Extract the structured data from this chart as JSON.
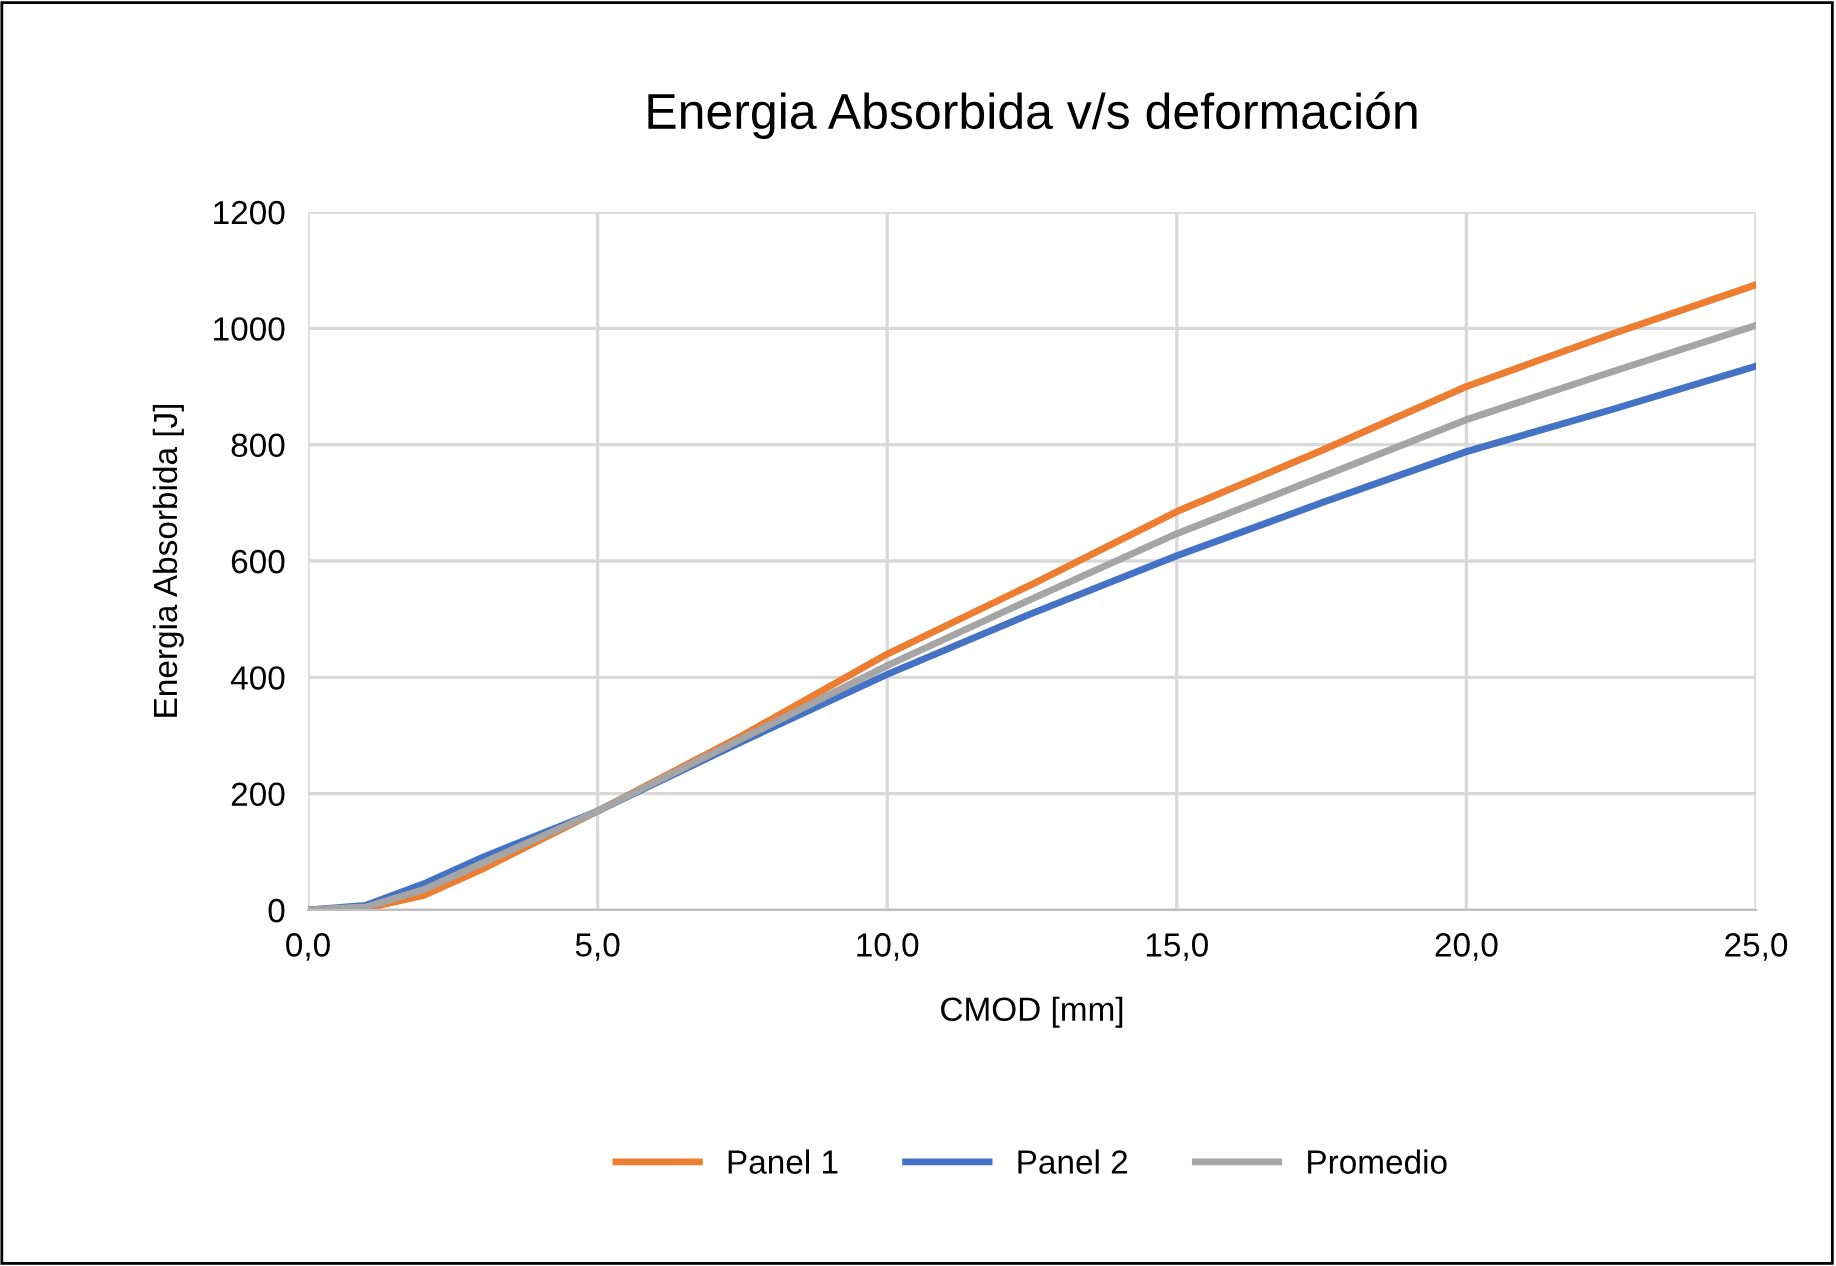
{
  "chart_data": {
    "type": "line",
    "title": "Energia Absorbida v/s deformación",
    "xlabel": "CMOD [mm]",
    "ylabel": "Energia Absorbida [J]",
    "x": [
      0,
      1,
      2,
      3,
      4,
      5,
      7.5,
      10,
      12.5,
      15,
      17.5,
      20,
      22.5,
      25
    ],
    "series": [
      {
        "name": "Panel 1",
        "color": "#ed7d31",
        "values": [
          0,
          3,
          25,
          70,
          120,
          170,
          300,
          440,
          560,
          685,
          790,
          900,
          990,
          1075
        ]
      },
      {
        "name": "Panel 2",
        "color": "#4472c4",
        "values": [
          0,
          8,
          45,
          90,
          130,
          170,
          290,
          405,
          510,
          609,
          700,
          788,
          860,
          935
        ]
      },
      {
        "name": "Promedio",
        "color": "#a5a5a5",
        "values": [
          0,
          5,
          35,
          80,
          125,
          170,
          295,
          420,
          535,
          647,
          745,
          843,
          925,
          1005
        ]
      }
    ],
    "xlim": [
      0,
      25
    ],
    "xticks": [
      {
        "value": 0,
        "label": "0,0"
      },
      {
        "value": 5,
        "label": "5,0"
      },
      {
        "value": 10,
        "label": "10,0"
      },
      {
        "value": 15,
        "label": "15,0"
      },
      {
        "value": 20,
        "label": "20,0"
      },
      {
        "value": 25,
        "label": "25,0"
      }
    ],
    "ylim": [
      0,
      1200
    ],
    "yticks": [
      0,
      200,
      400,
      600,
      800,
      1000,
      1200
    ],
    "grid": true,
    "legend": "bottom",
    "marker": "none",
    "line_style": "solid"
  }
}
